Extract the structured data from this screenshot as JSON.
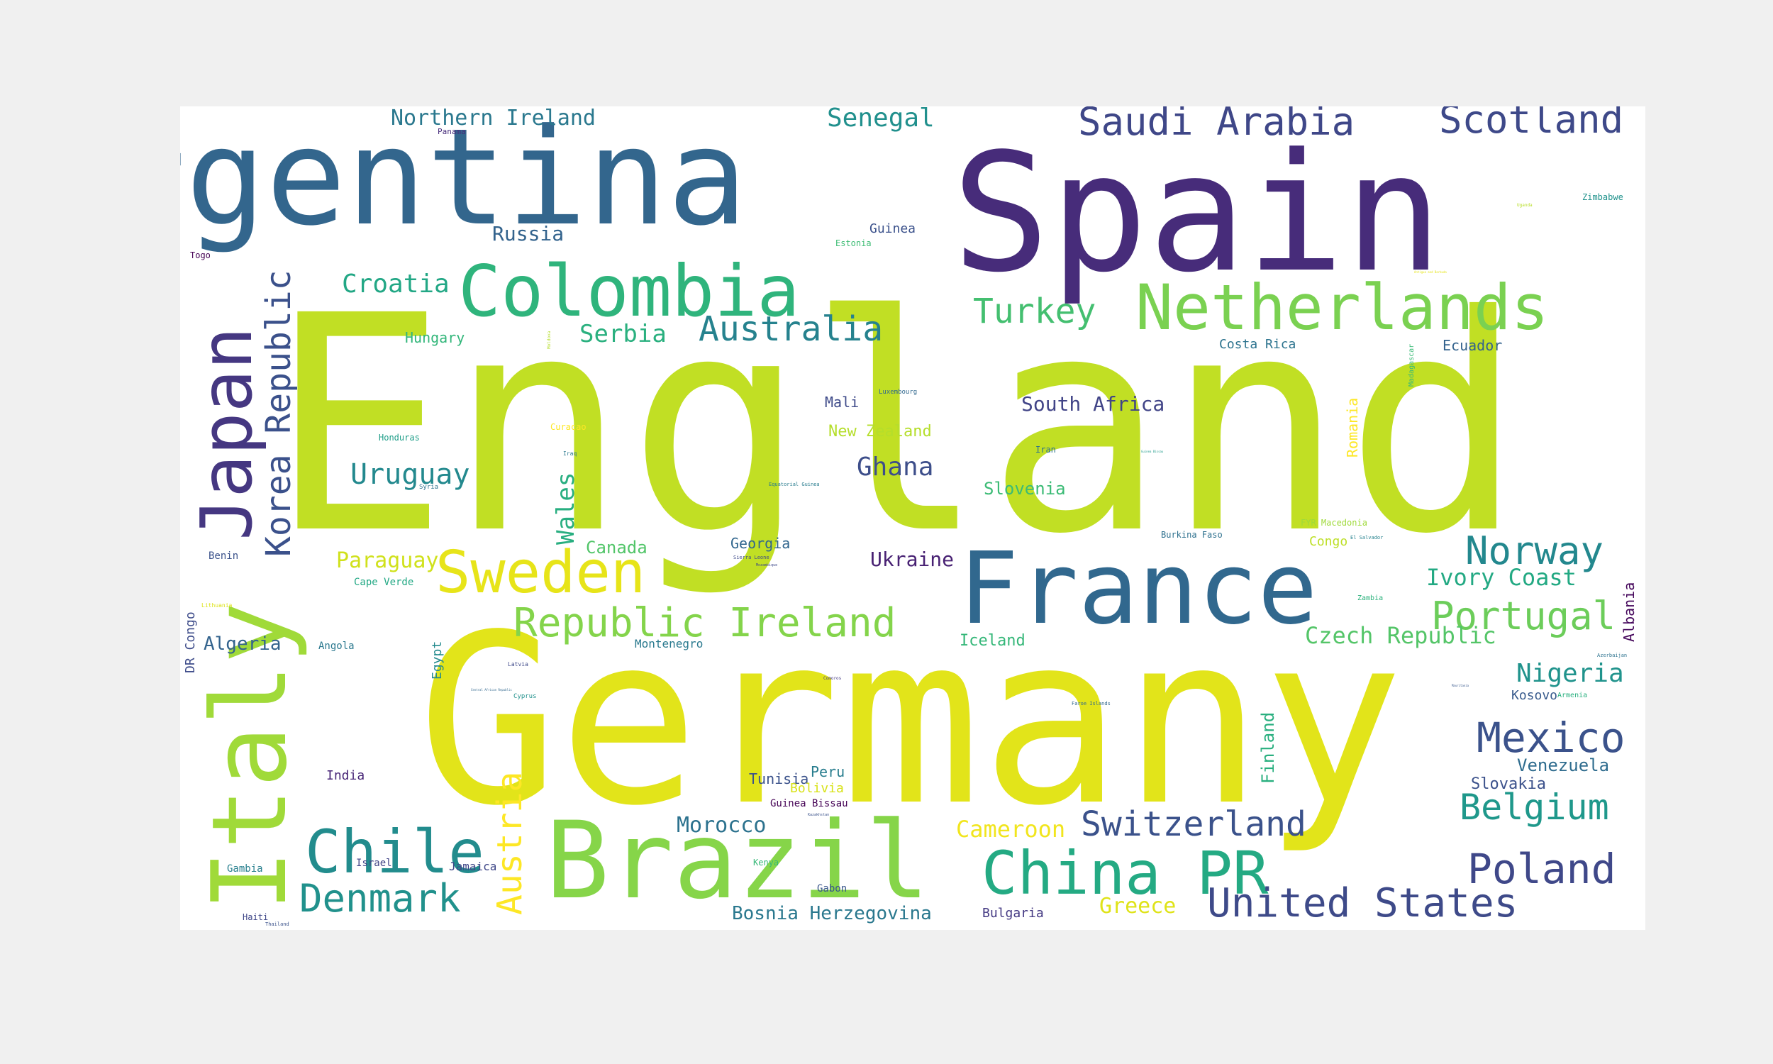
{
  "word_cloud": {
    "words": [
      {
        "text": "England",
        "color": "#c1df24",
        "weight": 1.0
      },
      {
        "text": "Germany",
        "color": "#e2e41a",
        "weight": 0.86
      },
      {
        "text": "Spain",
        "color": "#472c7a",
        "weight": 0.64
      },
      {
        "text": "Argentina",
        "color": "#33668d",
        "weight": 0.5
      },
      {
        "text": "Brazil",
        "color": "#86d549",
        "weight": 0.42
      },
      {
        "text": "France",
        "color": "#31688e",
        "weight": 0.4
      },
      {
        "text": "Italy",
        "color": "#a0da39",
        "weight": 0.36
      },
      {
        "text": "Japan",
        "color": "#453781",
        "weight": 0.28
      },
      {
        "text": "Colombia",
        "color": "#2fb47c",
        "weight": 0.3
      },
      {
        "text": "Netherlands",
        "color": "#7ad151",
        "weight": 0.26
      },
      {
        "text": "China PR",
        "color": "#24aa83",
        "weight": 0.24
      },
      {
        "text": "Chile",
        "color": "#228c8d",
        "weight": 0.22
      },
      {
        "text": "Sweden",
        "color": "#e7e419",
        "weight": 0.2
      },
      {
        "text": "Korea Republic",
        "color": "#3b518b",
        "weight": 0.16
      },
      {
        "text": "Republic Ireland",
        "color": "#84d44b",
        "weight": 0.16
      },
      {
        "text": "Austria",
        "color": "#fde725",
        "weight": 0.14
      },
      {
        "text": "United States",
        "color": "#3e4a89",
        "weight": 0.16
      },
      {
        "text": "Denmark",
        "color": "#21918c",
        "weight": 0.14
      },
      {
        "text": "Switzerland",
        "color": "#3b528b",
        "weight": 0.13
      },
      {
        "text": "Saudi Arabia",
        "color": "#3f4788",
        "weight": 0.14
      },
      {
        "text": "Scotland",
        "color": "#3e4989",
        "weight": 0.14
      },
      {
        "text": "Mexico",
        "color": "#3b528b",
        "weight": 0.14
      },
      {
        "text": "Poland",
        "color": "#3f4889",
        "weight": 0.14
      },
      {
        "text": "Belgium",
        "color": "#1f988b",
        "weight": 0.13
      },
      {
        "text": "Portugal",
        "color": "#6ccd5a",
        "weight": 0.13
      },
      {
        "text": "Norway",
        "color": "#23888e",
        "weight": 0.13
      },
      {
        "text": "Australia",
        "color": "#26828e",
        "weight": 0.12
      },
      {
        "text": "Turkey",
        "color": "#44bf70",
        "weight": 0.12
      },
      {
        "text": "Uruguay",
        "color": "#23898e",
        "weight": 0.1
      },
      {
        "text": "Nigeria",
        "color": "#20938c",
        "weight": 0.09
      },
      {
        "text": "Ivory Coast",
        "color": "#23a983",
        "weight": 0.08
      },
      {
        "text": "Czech Republic",
        "color": "#54c568",
        "weight": 0.08
      },
      {
        "text": "Senegal",
        "color": "#21908d",
        "weight": 0.09
      },
      {
        "text": "Ghana",
        "color": "#3d4e8a",
        "weight": 0.09
      },
      {
        "text": "Wales",
        "color": "#28ae80",
        "weight": 0.08
      },
      {
        "text": "Croatia",
        "color": "#22a785",
        "weight": 0.09
      },
      {
        "text": "Serbia",
        "color": "#2ab07f",
        "weight": 0.08
      },
      {
        "text": "Northern Ireland",
        "color": "#2a788e",
        "weight": 0.08
      },
      {
        "text": "Cameroon",
        "color": "#f1e51d",
        "weight": 0.08
      },
      {
        "text": "Morocco",
        "color": "#2c728e",
        "weight": 0.07
      },
      {
        "text": "Paraguay",
        "color": "#d0e11c",
        "weight": 0.07
      },
      {
        "text": "Russia",
        "color": "#33638d",
        "weight": 0.07
      },
      {
        "text": "South Africa",
        "color": "#414487",
        "weight": 0.07
      },
      {
        "text": "Greece",
        "color": "#dfe318",
        "weight": 0.07
      },
      {
        "text": "Ukraine",
        "color": "#482173",
        "weight": 0.07
      },
      {
        "text": "Slovenia",
        "color": "#3bbb75",
        "weight": 0.06
      },
      {
        "text": "Algeria",
        "color": "#33638d",
        "weight": 0.06
      },
      {
        "text": "Bosnia Herzegovina",
        "color": "#2a788e",
        "weight": 0.06
      },
      {
        "text": "New Zealand",
        "color": "#b5de2b",
        "weight": 0.05
      },
      {
        "text": "Canada",
        "color": "#52c569",
        "weight": 0.06
      },
      {
        "text": "Venezuela",
        "color": "#2f6c8e",
        "weight": 0.06
      },
      {
        "text": "Slovakia",
        "color": "#3b518b",
        "weight": 0.05
      },
      {
        "text": "Albania",
        "color": "#46085c",
        "weight": 0.05
      },
      {
        "text": "Iceland",
        "color": "#35b779",
        "weight": 0.05
      },
      {
        "text": "Finland",
        "color": "#29af7f",
        "weight": 0.05
      },
      {
        "text": "Romania",
        "color": "#fde725",
        "weight": 0.05
      },
      {
        "text": "Egypt",
        "color": "#238a8d",
        "weight": 0.04
      },
      {
        "text": "Peru",
        "color": "#287d8e",
        "weight": 0.05
      },
      {
        "text": "Georgia",
        "color": "#31668e",
        "weight": 0.05
      },
      {
        "text": "Mali",
        "color": "#3e4a89",
        "weight": 0.05
      },
      {
        "text": "Tunisia",
        "color": "#3b528b",
        "weight": 0.05
      },
      {
        "text": "Hungary",
        "color": "#32b67a",
        "weight": 0.05
      },
      {
        "text": "Ecuador",
        "color": "#33628d",
        "weight": 0.05
      },
      {
        "text": "Costa Rica",
        "color": "#2c738e",
        "weight": 0.04
      },
      {
        "text": "Kosovo",
        "color": "#375a8c",
        "weight": 0.04
      },
      {
        "text": "Montenegro",
        "color": "#29798e",
        "weight": 0.04
      },
      {
        "text": "Guinea",
        "color": "#3b518b",
        "weight": 0.04
      },
      {
        "text": "Bulgaria",
        "color": "#443983",
        "weight": 0.04
      },
      {
        "text": "Bolivia",
        "color": "#d8e219",
        "weight": 0.04
      },
      {
        "text": "India",
        "color": "#482677",
        "weight": 0.04
      },
      {
        "text": "Jamaica",
        "color": "#3f4788",
        "weight": 0.04
      },
      {
        "text": "Congo",
        "color": "#bddf26",
        "weight": 0.04
      },
      {
        "text": "DR Congo",
        "color": "#3e4c8a",
        "weight": 0.04
      },
      {
        "text": "Angola",
        "color": "#2a788e",
        "weight": 0.03
      },
      {
        "text": "Guinea Bissau",
        "color": "#440154",
        "weight": 0.03
      },
      {
        "text": "Gabon",
        "color": "#39568c",
        "weight": 0.03
      },
      {
        "text": "Kenya",
        "color": "#37b878",
        "weight": 0.03
      },
      {
        "text": "Benin",
        "color": "#3b528b",
        "weight": 0.03
      },
      {
        "text": "Cape Verde",
        "color": "#22a884",
        "weight": 0.03
      },
      {
        "text": "Gambia",
        "color": "#277f8e",
        "weight": 0.03
      },
      {
        "text": "Haiti",
        "color": "#3f4788",
        "weight": 0.03
      },
      {
        "text": "Israel",
        "color": "#414487",
        "weight": 0.03
      },
      {
        "text": "Togo",
        "color": "#440154",
        "weight": 0.03
      },
      {
        "text": "Zimbabwe",
        "color": "#20928c",
        "weight": 0.03
      },
      {
        "text": "Honduras",
        "color": "#1f9e89",
        "weight": 0.03
      },
      {
        "text": "Iran",
        "color": "#2c728e",
        "weight": 0.03
      },
      {
        "text": "FYR Macedonia",
        "color": "#9fda3a",
        "weight": 0.03
      },
      {
        "text": "Burkina Faso",
        "color": "#2d708e",
        "weight": 0.03
      },
      {
        "text": "Curacao",
        "color": "#fde725",
        "weight": 0.03
      },
      {
        "text": "Estonia",
        "color": "#3dbc74",
        "weight": 0.03
      },
      {
        "text": "Zambia",
        "color": "#2db27d",
        "weight": 0.02
      },
      {
        "text": "Armenia",
        "color": "#2ab07f",
        "weight": 0.02
      },
      {
        "text": "Madagascar",
        "color": "#3aba76",
        "weight": 0.02
      },
      {
        "text": "Luxembourg",
        "color": "#31688e",
        "weight": 0.02
      },
      {
        "text": "Panama",
        "color": "#472d7b",
        "weight": 0.02
      },
      {
        "text": "Syria",
        "color": "#2c728e",
        "weight": 0.02
      },
      {
        "text": "Latvia",
        "color": "#3e4989",
        "weight": 0.02
      },
      {
        "text": "Cyprus",
        "color": "#21918c",
        "weight": 0.02
      },
      {
        "text": "Iraq",
        "color": "#2a788e",
        "weight": 0.02
      },
      {
        "text": "Lithuania",
        "color": "#dde318",
        "weight": 0.02
      },
      {
        "text": "Sierra Leone",
        "color": "#3e4a89",
        "weight": 0.02
      },
      {
        "text": "Equatorial Guinea",
        "color": "#287c8e",
        "weight": 0.02
      },
      {
        "text": "El Salvador",
        "color": "#26828e",
        "weight": 0.02
      },
      {
        "text": "Faroe Islands",
        "color": "#31688e",
        "weight": 0.02
      },
      {
        "text": "Thailand",
        "color": "#3b528b",
        "weight": 0.02
      },
      {
        "text": "Azerbaijan",
        "color": "#2c728e",
        "weight": 0.02
      },
      {
        "text": "Uganda",
        "color": "#b8de29",
        "weight": 0.01
      },
      {
        "text": "Comoros",
        "color": "#443a83",
        "weight": 0.01
      },
      {
        "text": "Moldova",
        "color": "#b5de2b",
        "weight": 0.01
      },
      {
        "text": "Mozambique",
        "color": "#3e4989",
        "weight": 0.01
      },
      {
        "text": "Kazakhstan",
        "color": "#3b528b",
        "weight": 0.01
      },
      {
        "text": "Central African Republic",
        "color": "#31688e",
        "weight": 0.01
      },
      {
        "text": "Guinea Bissau",
        "color": "#1f9a8a",
        "weight": 0.01
      },
      {
        "text": "Antigua and Barbuda",
        "color": "#e5e419",
        "weight": 0.01
      },
      {
        "text": "Mauritania",
        "color": "#38588c",
        "weight": 0.01
      }
    ]
  }
}
